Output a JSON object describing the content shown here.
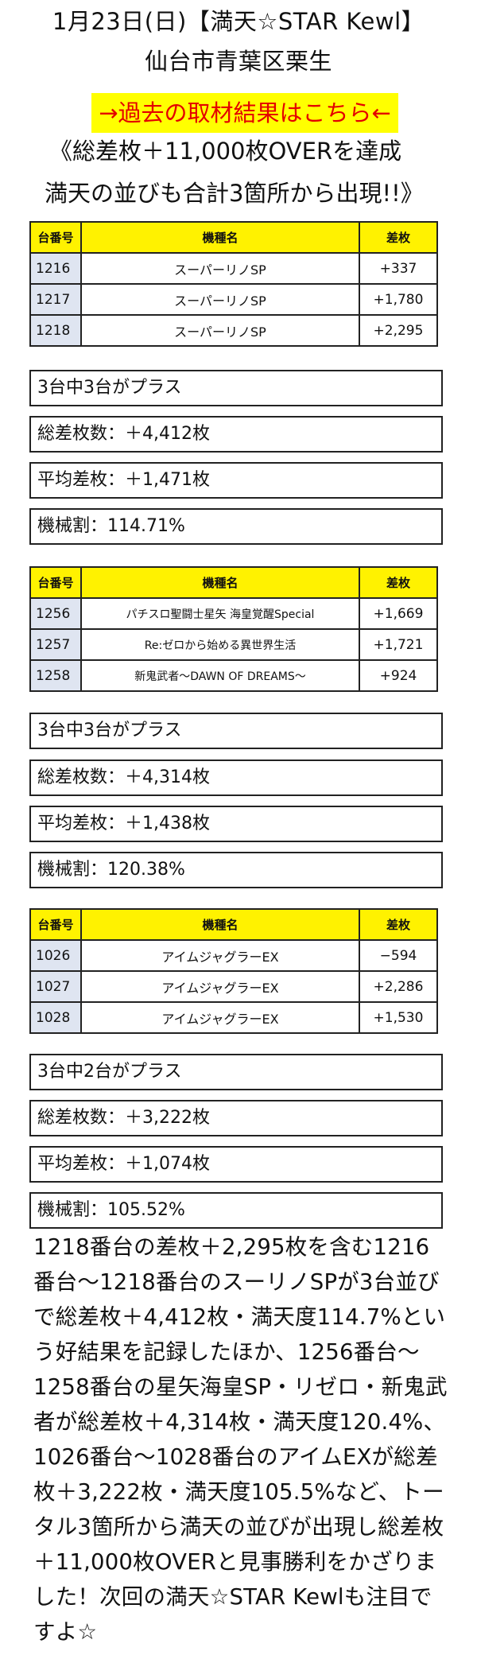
{
  "header": {
    "title_line1": "1月23日(日)【満天☆STAR Kewl】",
    "title_line2": "仙台市青葉区栗生",
    "link_text": "→過去の取材結果はこちら←",
    "headline_line1": "《総差枚＋11,000枚OVERを達成",
    "headline_line2": "満天の並びも合計3箇所から出現!!》",
    "link_color": "#e40000",
    "banner_color": "#ffff00"
  },
  "columns": {
    "number": "台番号",
    "machine": "機種名",
    "diff": "差枚"
  },
  "groups": [
    {
      "rows": [
        {
          "number": "1216",
          "machine": "スーパーリノSP",
          "diff": "+337"
        },
        {
          "number": "1217",
          "machine": "スーパーリノSP",
          "diff": "+1,780"
        },
        {
          "number": "1218",
          "machine": "スーパーリノSP",
          "diff": "+2,295"
        }
      ],
      "stats": {
        "plus_count": "3台中3台がプラス",
        "total_diff": "総差枚数：＋4,412枚",
        "avg_diff": "平均差枚：＋1,471枚",
        "payout": "機械割：114.71%"
      }
    },
    {
      "rows": [
        {
          "number": "1256",
          "machine": "パチスロ聖闘士星矢 海皇覚醒Special",
          "diff": "+1,669"
        },
        {
          "number": "1257",
          "machine": "Re:ゼロから始める異世界生活",
          "diff": "+1,721"
        },
        {
          "number": "1258",
          "machine": "新鬼武者〜DAWN OF DREAMS〜",
          "diff": "+924"
        }
      ],
      "stats": {
        "plus_count": "3台中3台がプラス",
        "total_diff": "総差枚数：＋4,314枚",
        "avg_diff": "平均差枚：＋1,438枚",
        "payout": "機械割：120.38%"
      }
    },
    {
      "rows": [
        {
          "number": "1026",
          "machine": "アイムジャグラーEX",
          "diff": "−594"
        },
        {
          "number": "1027",
          "machine": "アイムジャグラーEX",
          "diff": "+2,286"
        },
        {
          "number": "1028",
          "machine": "アイムジャグラーEX",
          "diff": "+1,530"
        }
      ],
      "stats": {
        "plus_count": "3台中2台がプラス",
        "total_diff": "総差枚数：＋3,222枚",
        "avg_diff": "平均差枚：＋1,074枚",
        "payout": "機械割：105.52%"
      }
    }
  ],
  "summary": {
    "lines": [
      "1218番台の差枚＋2,295枚を含む1216",
      "番台〜1218番台のスーリノSPが3台並び",
      "で総差枚＋4,412枚・満天度114.7%とい",
      "う好結果を記録したほか、1256番台〜",
      "1258番台の星矢海皇SP・リゼロ・新鬼武",
      "者が総差枚＋4,314枚・満天度120.4%、",
      "1026番台〜1028番台のアイムEXが総差",
      "枚＋3,222枚・満天度105.5%など、トー",
      "タル3箇所から満天の並びが出現し総差枚",
      "＋11,000枚OVERと見事勝利をかざりま",
      "した！次回の満天☆STAR Kewlも注目で",
      "すよ☆"
    ]
  }
}
